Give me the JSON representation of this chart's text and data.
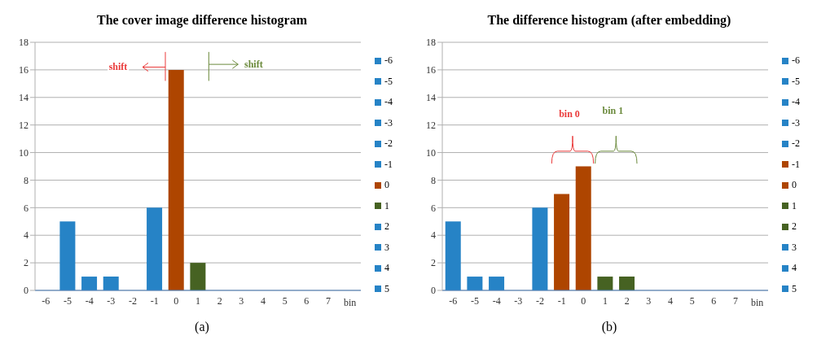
{
  "chart_data": [
    {
      "type": "bar",
      "title": "The cover image difference histogram",
      "xlabel": "bin",
      "stacked": true,
      "grid": "y",
      "legend": "right",
      "ylim": [
        0,
        18
      ],
      "yticks": [
        0,
        2,
        4,
        6,
        8,
        10,
        12,
        14,
        16,
        18
      ],
      "categories": [
        "-6",
        "-5",
        "-4",
        "-3",
        "-2",
        "-1",
        "0",
        "1",
        "2",
        "3",
        "4",
        "5",
        "6",
        "7",
        null
      ],
      "series": [
        {
          "name": "-6",
          "color": "#2683c6",
          "values": [
            0,
            null,
            null,
            null,
            null,
            null,
            null,
            null,
            null,
            null,
            null,
            null,
            null,
            null,
            null
          ]
        },
        {
          "name": "-5",
          "color": "#2683c6",
          "values": [
            null,
            5,
            null,
            null,
            null,
            null,
            null,
            null,
            null,
            null,
            null,
            null,
            null,
            null,
            null
          ]
        },
        {
          "name": "-4",
          "color": "#2683c6",
          "values": [
            null,
            null,
            1,
            null,
            null,
            null,
            null,
            null,
            null,
            null,
            null,
            null,
            null,
            null,
            null
          ]
        },
        {
          "name": "-3",
          "color": "#2683c6",
          "values": [
            null,
            null,
            null,
            1,
            null,
            null,
            null,
            null,
            null,
            null,
            null,
            null,
            null,
            null,
            null
          ]
        },
        {
          "name": "-2",
          "color": "#2683c6",
          "values": [
            null,
            null,
            null,
            null,
            0,
            null,
            null,
            null,
            null,
            null,
            null,
            null,
            null,
            null,
            null
          ]
        },
        {
          "name": "-1",
          "color": "#2683c6",
          "values": [
            null,
            null,
            null,
            null,
            null,
            6,
            null,
            null,
            null,
            null,
            null,
            null,
            null,
            null,
            null
          ]
        },
        {
          "name": "0",
          "color": "#ae4500",
          "values": [
            null,
            null,
            null,
            null,
            null,
            null,
            16,
            null,
            null,
            null,
            null,
            null,
            null,
            null,
            null
          ]
        },
        {
          "name": "1",
          "color": "#466222",
          "values": [
            null,
            null,
            null,
            null,
            null,
            null,
            null,
            2,
            null,
            null,
            null,
            null,
            null,
            null,
            null
          ]
        },
        {
          "name": "2",
          "color": "#2683c6",
          "values": [
            null,
            null,
            null,
            null,
            null,
            null,
            null,
            null,
            0,
            null,
            null,
            null,
            null,
            null,
            null
          ]
        },
        {
          "name": "3",
          "color": "#2683c6",
          "values": [
            null,
            null,
            null,
            null,
            null,
            null,
            null,
            null,
            null,
            0,
            null,
            null,
            null,
            null,
            null
          ]
        },
        {
          "name": "4",
          "color": "#2683c6",
          "values": [
            null,
            null,
            null,
            null,
            null,
            null,
            null,
            null,
            null,
            null,
            0,
            null,
            null,
            null,
            null
          ]
        },
        {
          "name": "5",
          "color": "#2683c6",
          "values": [
            null,
            null,
            null,
            null,
            null,
            null,
            null,
            null,
            null,
            null,
            null,
            0,
            null,
            null,
            null
          ]
        }
      ],
      "annotations": [
        "shift",
        "shift",
        "(a)"
      ]
    },
    {
      "type": "bar",
      "title": "The difference histogram (after embedding)",
      "xlabel": "bin",
      "stacked": true,
      "grid": "y",
      "legend": "right",
      "ylim": [
        0,
        18
      ],
      "yticks": [
        0,
        2,
        4,
        6,
        8,
        10,
        12,
        14,
        16,
        18
      ],
      "categories": [
        "-6",
        "-5",
        "-4",
        "-3",
        "-2",
        "-1",
        "0",
        "1",
        "2",
        "3",
        "4",
        "5",
        "6",
        "7",
        null
      ],
      "series": [
        {
          "name": "-6",
          "color": "#2683c6",
          "values": [
            5,
            null,
            null,
            null,
            null,
            null,
            null,
            null,
            null,
            null,
            null,
            null,
            null,
            null,
            null
          ]
        },
        {
          "name": "-5",
          "color": "#2683c6",
          "values": [
            null,
            1,
            null,
            null,
            null,
            null,
            null,
            null,
            null,
            null,
            null,
            null,
            null,
            null,
            null
          ]
        },
        {
          "name": "-4",
          "color": "#2683c6",
          "values": [
            null,
            null,
            1,
            null,
            null,
            null,
            null,
            null,
            null,
            null,
            null,
            null,
            null,
            null,
            null
          ]
        },
        {
          "name": "-3",
          "color": "#2683c6",
          "values": [
            null,
            null,
            null,
            0,
            null,
            null,
            null,
            null,
            null,
            null,
            null,
            null,
            null,
            null,
            null
          ]
        },
        {
          "name": "-2",
          "color": "#2683c6",
          "values": [
            null,
            null,
            null,
            null,
            6,
            null,
            null,
            null,
            null,
            null,
            null,
            null,
            null,
            null,
            null
          ]
        },
        {
          "name": "-1",
          "color": "#ae4500",
          "values": [
            null,
            null,
            null,
            null,
            null,
            7,
            null,
            null,
            null,
            null,
            null,
            null,
            null,
            null,
            null
          ]
        },
        {
          "name": "0",
          "color": "#ae4500",
          "values": [
            null,
            null,
            null,
            null,
            null,
            null,
            9,
            null,
            null,
            null,
            null,
            null,
            null,
            null,
            null
          ]
        },
        {
          "name": "1",
          "color": "#466222",
          "values": [
            null,
            null,
            null,
            null,
            null,
            null,
            null,
            1,
            null,
            null,
            null,
            null,
            null,
            null,
            null
          ]
        },
        {
          "name": "2",
          "color": "#466222",
          "values": [
            null,
            null,
            null,
            null,
            null,
            null,
            null,
            null,
            1,
            null,
            null,
            null,
            null,
            null,
            null
          ]
        },
        {
          "name": "3",
          "color": "#2683c6",
          "values": [
            null,
            null,
            null,
            null,
            null,
            null,
            null,
            null,
            null,
            0,
            null,
            null,
            null,
            null,
            null
          ]
        },
        {
          "name": "4",
          "color": "#2683c6",
          "values": [
            null,
            null,
            null,
            null,
            null,
            null,
            null,
            null,
            null,
            null,
            0,
            null,
            null,
            null,
            null
          ]
        },
        {
          "name": "5",
          "color": "#2683c6",
          "values": [
            null,
            null,
            null,
            null,
            null,
            null,
            null,
            null,
            null,
            null,
            null,
            0,
            null,
            null,
            null
          ]
        }
      ],
      "annotations": [
        "bin 0",
        "bin 1",
        "(b)"
      ]
    }
  ]
}
